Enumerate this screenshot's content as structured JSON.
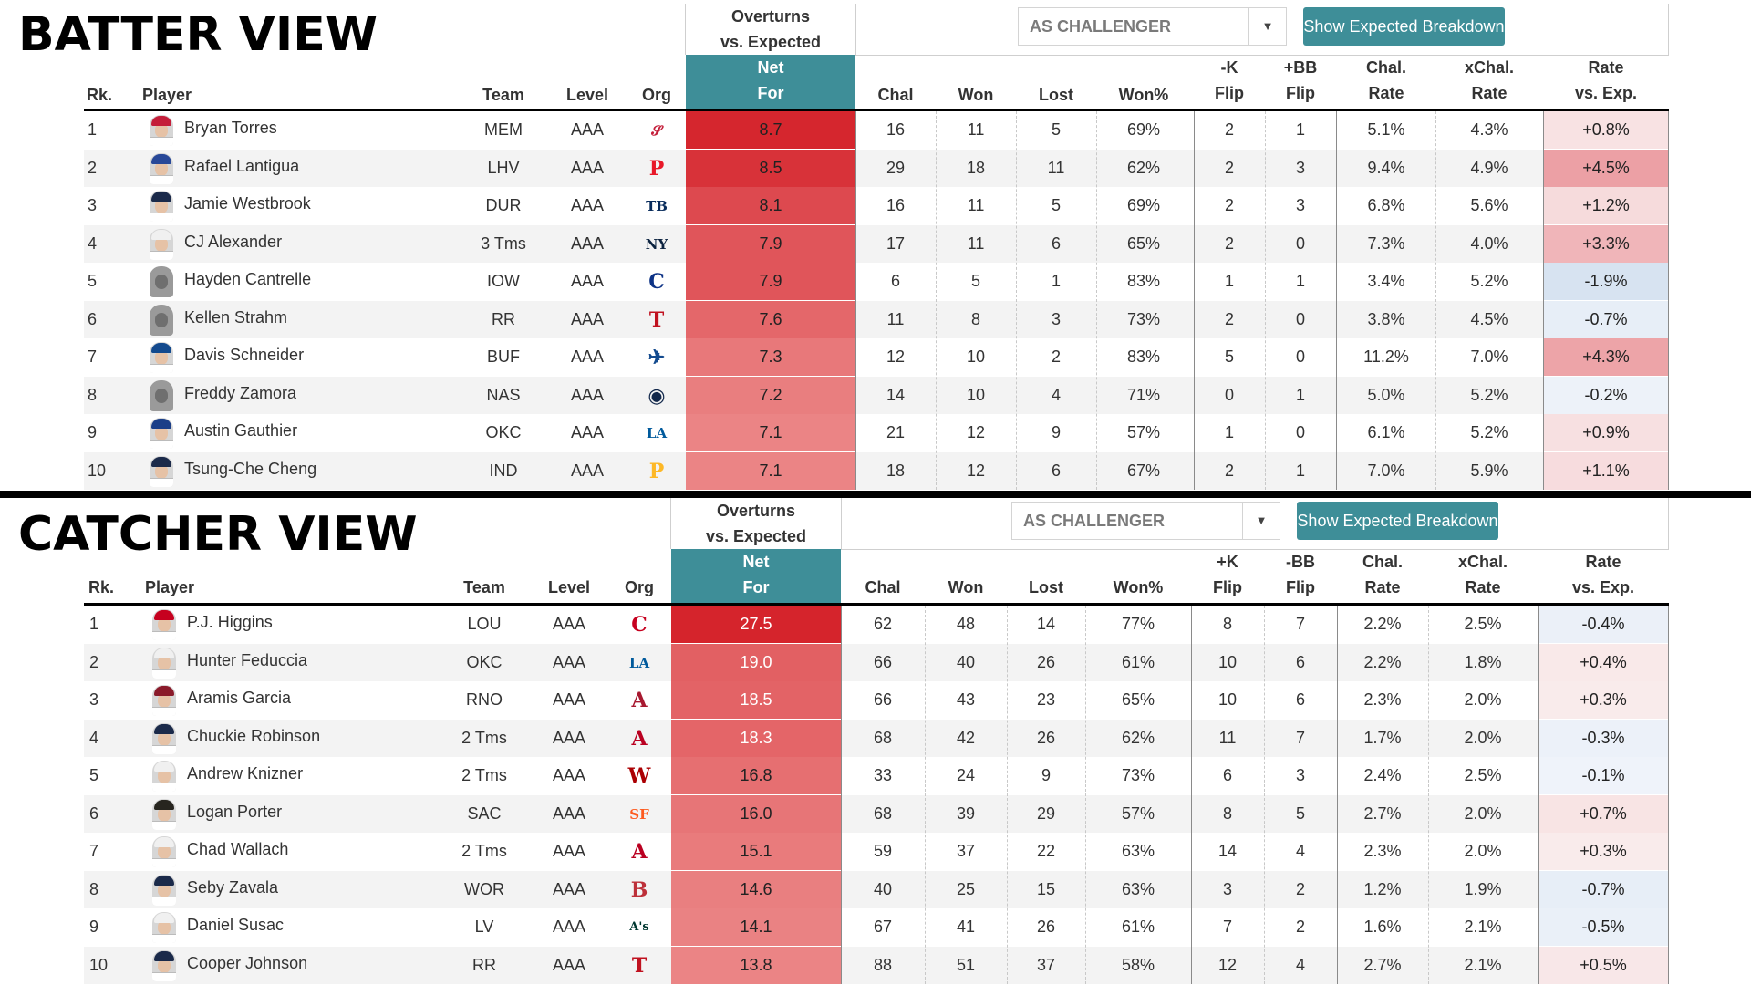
{
  "batter": {
    "title": "BATTER VIEW",
    "dropdown_value": "AS CHALLENGER",
    "button_label": "Show Expected Breakdown",
    "headers": {
      "overturns_line1": "Overturns",
      "overturns_line2": "vs. Expected",
      "net_line1": "Net",
      "net_line2": "For",
      "rk": "Rk.",
      "player": "Player",
      "team": "Team",
      "level": "Level",
      "org": "Org",
      "chal": "Chal",
      "won": "Won",
      "lost": "Lost",
      "won_pct": "Won%",
      "flip1_line1": "-K",
      "flip1_line2": "Flip",
      "flip2_line1": "+BB",
      "flip2_line2": "Flip",
      "chal_rate_line1": "Chal.",
      "chal_rate_line2": "Rate",
      "xchal_rate_line1": "xChal.",
      "xchal_rate_line2": "Rate",
      "rate_exp_line1": "Rate",
      "rate_exp_line2": "vs. Exp."
    },
    "rows": [
      {
        "rk": "1",
        "player": "Bryan Torres",
        "team": "MEM",
        "level": "AAA",
        "org_icon": "cardinals-logo-icon",
        "org_glyph": "𝓢",
        "org_color": "#c41e3a",
        "net": "8.7",
        "net_value": 8.7,
        "chal": "16",
        "won": "11",
        "lost": "5",
        "won_pct": "69%",
        "flip1": "2",
        "flip2": "1",
        "chal_rate": "5.1%",
        "xchal_rate": "4.3%",
        "rate_exp": "+0.8%",
        "rate_exp_value": 0.8,
        "avatar_cap": "#c41e3a"
      },
      {
        "rk": "2",
        "player": "Rafael Lantigua",
        "team": "LHV",
        "level": "AAA",
        "org_icon": "phillies-logo-icon",
        "org_glyph": "P",
        "org_color": "#e81828",
        "net": "8.5",
        "net_value": 8.5,
        "chal": "29",
        "won": "18",
        "lost": "11",
        "won_pct": "62%",
        "flip1": "2",
        "flip2": "3",
        "chal_rate": "9.4%",
        "xchal_rate": "4.9%",
        "rate_exp": "+4.5%",
        "rate_exp_value": 4.5,
        "avatar_cap": "#284898"
      },
      {
        "rk": "3",
        "player": "Jamie Westbrook",
        "team": "DUR",
        "level": "AAA",
        "org_icon": "rays-logo-icon",
        "org_glyph": "TB",
        "org_color": "#092c5c",
        "net": "8.1",
        "net_value": 8.1,
        "chal": "16",
        "won": "11",
        "lost": "5",
        "won_pct": "69%",
        "flip1": "2",
        "flip2": "3",
        "chal_rate": "6.8%",
        "xchal_rate": "5.6%",
        "rate_exp": "+1.2%",
        "rate_exp_value": 1.2,
        "avatar_cap": "#1b2a4a"
      },
      {
        "rk": "4",
        "player": "CJ Alexander",
        "team": "3 Tms",
        "level": "AAA",
        "org_icon": "yankees-logo-icon",
        "org_glyph": "NY",
        "org_color": "#0c2340",
        "net": "7.9",
        "net_value": 7.9,
        "chal": "17",
        "won": "11",
        "lost": "6",
        "won_pct": "65%",
        "flip1": "2",
        "flip2": "0",
        "chal_rate": "7.3%",
        "xchal_rate": "4.0%",
        "rate_exp": "+3.3%",
        "rate_exp_value": 3.3,
        "avatar_cap": "#f0f0f0"
      },
      {
        "rk": "5",
        "player": "Hayden Cantrelle",
        "team": "IOW",
        "level": "AAA",
        "org_icon": "cubs-logo-icon",
        "org_glyph": "C",
        "org_color": "#0e3386",
        "net": "7.9",
        "net_value": 7.9,
        "chal": "6",
        "won": "5",
        "lost": "1",
        "won_pct": "83%",
        "flip1": "1",
        "flip2": "1",
        "chal_rate": "3.4%",
        "xchal_rate": "5.2%",
        "rate_exp": "-1.9%",
        "rate_exp_value": -1.9,
        "avatar_cap": "silhouette"
      },
      {
        "rk": "6",
        "player": "Kellen Strahm",
        "team": "RR",
        "level": "AAA",
        "org_icon": "rangers-logo-icon",
        "org_glyph": "T",
        "org_color": "#c0111f",
        "net": "7.6",
        "net_value": 7.6,
        "chal": "11",
        "won": "8",
        "lost": "3",
        "won_pct": "73%",
        "flip1": "2",
        "flip2": "0",
        "chal_rate": "3.8%",
        "xchal_rate": "4.5%",
        "rate_exp": "-0.7%",
        "rate_exp_value": -0.7,
        "avatar_cap": "silhouette"
      },
      {
        "rk": "7",
        "player": "Davis Schneider",
        "team": "BUF",
        "level": "AAA",
        "org_icon": "blue-jays-logo-icon",
        "org_glyph": "✈",
        "org_color": "#134a8e",
        "net": "7.3",
        "net_value": 7.3,
        "chal": "12",
        "won": "10",
        "lost": "2",
        "won_pct": "83%",
        "flip1": "5",
        "flip2": "0",
        "chal_rate": "11.2%",
        "xchal_rate": "7.0%",
        "rate_exp": "+4.3%",
        "rate_exp_value": 4.3,
        "avatar_cap": "#134a8e"
      },
      {
        "rk": "8",
        "player": "Freddy Zamora",
        "team": "NAS",
        "level": "AAA",
        "org_icon": "brewers-logo-icon",
        "org_glyph": "◉",
        "org_color": "#12284b",
        "net": "7.2",
        "net_value": 7.2,
        "chal": "14",
        "won": "10",
        "lost": "4",
        "won_pct": "71%",
        "flip1": "0",
        "flip2": "1",
        "chal_rate": "5.0%",
        "xchal_rate": "5.2%",
        "rate_exp": "-0.2%",
        "rate_exp_value": -0.2,
        "avatar_cap": "silhouette"
      },
      {
        "rk": "9",
        "player": "Austin Gauthier",
        "team": "OKC",
        "level": "AAA",
        "org_icon": "dodgers-logo-icon",
        "org_glyph": "LA",
        "org_color": "#005a9c",
        "net": "7.1",
        "net_value": 7.1,
        "chal": "21",
        "won": "12",
        "lost": "9",
        "won_pct": "57%",
        "flip1": "1",
        "flip2": "0",
        "chal_rate": "6.1%",
        "xchal_rate": "5.2%",
        "rate_exp": "+0.9%",
        "rate_exp_value": 0.9,
        "avatar_cap": "#1b3f88"
      },
      {
        "rk": "10",
        "player": "Tsung-Che Cheng",
        "team": "IND",
        "level": "AAA",
        "org_icon": "pirates-logo-icon",
        "org_glyph": "P",
        "org_color": "#fdb827",
        "net": "7.1",
        "net_value": 7.1,
        "chal": "18",
        "won": "12",
        "lost": "6",
        "won_pct": "67%",
        "flip1": "2",
        "flip2": "1",
        "chal_rate": "7.0%",
        "xchal_rate": "5.9%",
        "rate_exp": "+1.1%",
        "rate_exp_value": 1.1,
        "avatar_cap": "#1b2a4a"
      }
    ]
  },
  "catcher": {
    "title": "CATCHER VIEW",
    "dropdown_value": "AS CHALLENGER",
    "button_label": "Show Expected Breakdown",
    "headers": {
      "overturns_line1": "Overturns",
      "overturns_line2": "vs. Expected",
      "net_line1": "Net",
      "net_line2": "For",
      "rk": "Rk.",
      "player": "Player",
      "team": "Team",
      "level": "Level",
      "org": "Org",
      "chal": "Chal",
      "won": "Won",
      "lost": "Lost",
      "won_pct": "Won%",
      "flip1_line1": "+K",
      "flip1_line2": "Flip",
      "flip2_line1": "-BB",
      "flip2_line2": "Flip",
      "chal_rate_line1": "Chal.",
      "chal_rate_line2": "Rate",
      "xchal_rate_line1": "xChal.",
      "xchal_rate_line2": "Rate",
      "rate_exp_line1": "Rate",
      "rate_exp_line2": "vs. Exp."
    },
    "rows": [
      {
        "rk": "1",
        "player": "P.J. Higgins",
        "team": "LOU",
        "level": "AAA",
        "org_icon": "reds-logo-icon",
        "org_glyph": "C",
        "org_color": "#c6011f",
        "net": "27.5",
        "net_value": 27.5,
        "chal": "62",
        "won": "48",
        "lost": "14",
        "won_pct": "77%",
        "flip1": "8",
        "flip2": "7",
        "chal_rate": "2.2%",
        "xchal_rate": "2.5%",
        "rate_exp": "-0.4%",
        "rate_exp_value": -0.4,
        "avatar_cap": "#c6011f"
      },
      {
        "rk": "2",
        "player": "Hunter Feduccia",
        "team": "OKC",
        "level": "AAA",
        "org_icon": "dodgers-logo-icon",
        "org_glyph": "LA",
        "org_color": "#005a9c",
        "net": "19.0",
        "net_value": 19.0,
        "chal": "66",
        "won": "40",
        "lost": "26",
        "won_pct": "61%",
        "flip1": "10",
        "flip2": "6",
        "chal_rate": "2.2%",
        "xchal_rate": "1.8%",
        "rate_exp": "+0.4%",
        "rate_exp_value": 0.4,
        "avatar_cap": "#f0f0f0"
      },
      {
        "rk": "3",
        "player": "Aramis Garcia",
        "team": "RNO",
        "level": "AAA",
        "org_icon": "diamondbacks-logo-icon",
        "org_glyph": "A",
        "org_color": "#a71930",
        "net": "18.5",
        "net_value": 18.5,
        "chal": "66",
        "won": "43",
        "lost": "23",
        "won_pct": "65%",
        "flip1": "10",
        "flip2": "6",
        "chal_rate": "2.3%",
        "xchal_rate": "2.0%",
        "rate_exp": "+0.3%",
        "rate_exp_value": 0.3,
        "avatar_cap": "#8a1a2a"
      },
      {
        "rk": "4",
        "player": "Chuckie Robinson",
        "team": "2 Tms",
        "level": "AAA",
        "org_icon": "angels-logo-icon",
        "org_glyph": "A",
        "org_color": "#ba0021",
        "net": "18.3",
        "net_value": 18.3,
        "chal": "68",
        "won": "42",
        "lost": "26",
        "won_pct": "62%",
        "flip1": "11",
        "flip2": "7",
        "chal_rate": "1.7%",
        "xchal_rate": "2.0%",
        "rate_exp": "-0.3%",
        "rate_exp_value": -0.3,
        "avatar_cap": "#1b2a4a"
      },
      {
        "rk": "5",
        "player": "Andrew Knizner",
        "team": "2 Tms",
        "level": "AAA",
        "org_icon": "nationals-logo-icon",
        "org_glyph": "W",
        "org_color": "#ab0003",
        "net": "16.8",
        "net_value": 16.8,
        "chal": "33",
        "won": "24",
        "lost": "9",
        "won_pct": "73%",
        "flip1": "6",
        "flip2": "3",
        "chal_rate": "2.4%",
        "xchal_rate": "2.5%",
        "rate_exp": "-0.1%",
        "rate_exp_value": -0.1,
        "avatar_cap": "#f0f0f0"
      },
      {
        "rk": "6",
        "player": "Logan Porter",
        "team": "SAC",
        "level": "AAA",
        "org_icon": "giants-logo-icon",
        "org_glyph": "SF",
        "org_color": "#fd5a1e",
        "net": "16.0",
        "net_value": 16.0,
        "chal": "68",
        "won": "39",
        "lost": "29",
        "won_pct": "57%",
        "flip1": "8",
        "flip2": "5",
        "chal_rate": "2.7%",
        "xchal_rate": "2.0%",
        "rate_exp": "+0.7%",
        "rate_exp_value": 0.7,
        "avatar_cap": "#27251f"
      },
      {
        "rk": "7",
        "player": "Chad Wallach",
        "team": "2 Tms",
        "level": "AAA",
        "org_icon": "angels-logo-icon",
        "org_glyph": "A",
        "org_color": "#ba0021",
        "net": "15.1",
        "net_value": 15.1,
        "chal": "59",
        "won": "37",
        "lost": "22",
        "won_pct": "63%",
        "flip1": "14",
        "flip2": "4",
        "chal_rate": "2.3%",
        "xchal_rate": "2.0%",
        "rate_exp": "+0.3%",
        "rate_exp_value": 0.3,
        "avatar_cap": "#f0f0f0"
      },
      {
        "rk": "8",
        "player": "Seby Zavala",
        "team": "WOR",
        "level": "AAA",
        "org_icon": "red-sox-logo-icon",
        "org_glyph": "B",
        "org_color": "#bd3039",
        "net": "14.6",
        "net_value": 14.6,
        "chal": "40",
        "won": "25",
        "lost": "15",
        "won_pct": "63%",
        "flip1": "3",
        "flip2": "2",
        "chal_rate": "1.2%",
        "xchal_rate": "1.9%",
        "rate_exp": "-0.7%",
        "rate_exp_value": -0.7,
        "avatar_cap": "#1b2a4a"
      },
      {
        "rk": "9",
        "player": "Daniel Susac",
        "team": "LV",
        "level": "AAA",
        "org_icon": "athletics-logo-icon",
        "org_glyph": "A's",
        "org_color": "#003831",
        "net": "14.1",
        "net_value": 14.1,
        "chal": "67",
        "won": "41",
        "lost": "26",
        "won_pct": "61%",
        "flip1": "7",
        "flip2": "2",
        "chal_rate": "1.6%",
        "xchal_rate": "2.1%",
        "rate_exp": "-0.5%",
        "rate_exp_value": -0.5,
        "avatar_cap": "#f0f0f0"
      },
      {
        "rk": "10",
        "player": "Cooper Johnson",
        "team": "RR",
        "level": "AAA",
        "org_icon": "rangers-logo-icon",
        "org_glyph": "T",
        "org_color": "#c0111f",
        "net": "13.8",
        "net_value": 13.8,
        "chal": "88",
        "won": "51",
        "lost": "37",
        "won_pct": "58%",
        "flip1": "12",
        "flip2": "4",
        "chal_rate": "2.7%",
        "xchal_rate": "2.1%",
        "rate_exp": "+0.5%",
        "rate_exp_value": 0.5,
        "avatar_cap": "#1b2a4a"
      }
    ]
  }
}
